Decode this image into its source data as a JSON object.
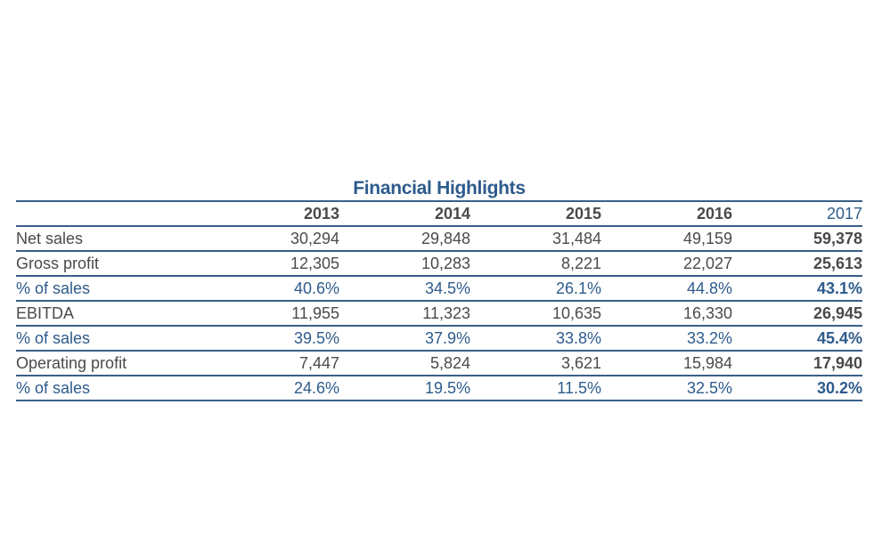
{
  "title": "Financial Highlights",
  "years": [
    "2013",
    "2014",
    "2015",
    "2016",
    "2017"
  ],
  "rows": [
    {
      "label": "Net sales",
      "type": "value",
      "values": [
        "30,294",
        "29,848",
        "31,484",
        "49,159",
        "59,378"
      ]
    },
    {
      "label": "Gross profit",
      "type": "value",
      "values": [
        "12,305",
        "10,283",
        "8,221",
        "22,027",
        "25,613"
      ]
    },
    {
      "label": "% of sales",
      "type": "pct",
      "values": [
        "40.6%",
        "34.5%",
        "26.1%",
        "44.8%",
        "43.1%"
      ]
    },
    {
      "label": "EBITDA",
      "type": "value",
      "values": [
        "11,955",
        "11,323",
        "10,635",
        "16,330",
        "26,945"
      ]
    },
    {
      "label": "% of sales",
      "type": "pct",
      "values": [
        "39.5%",
        "37.9%",
        "33.8%",
        "33.2%",
        "45.4%"
      ]
    },
    {
      "label": "Operating profit",
      "type": "value",
      "values": [
        "7,447",
        "5,824",
        "3,621",
        "15,984",
        "17,940"
      ]
    },
    {
      "label": "% of sales",
      "type": "pct",
      "values": [
        "24.6%",
        "19.5%",
        "11.5%",
        "32.5%",
        "30.2%"
      ]
    }
  ],
  "colors": {
    "accent": "#2e5b8c",
    "text": "#4a4a4a",
    "rule": "#3a5f89"
  }
}
